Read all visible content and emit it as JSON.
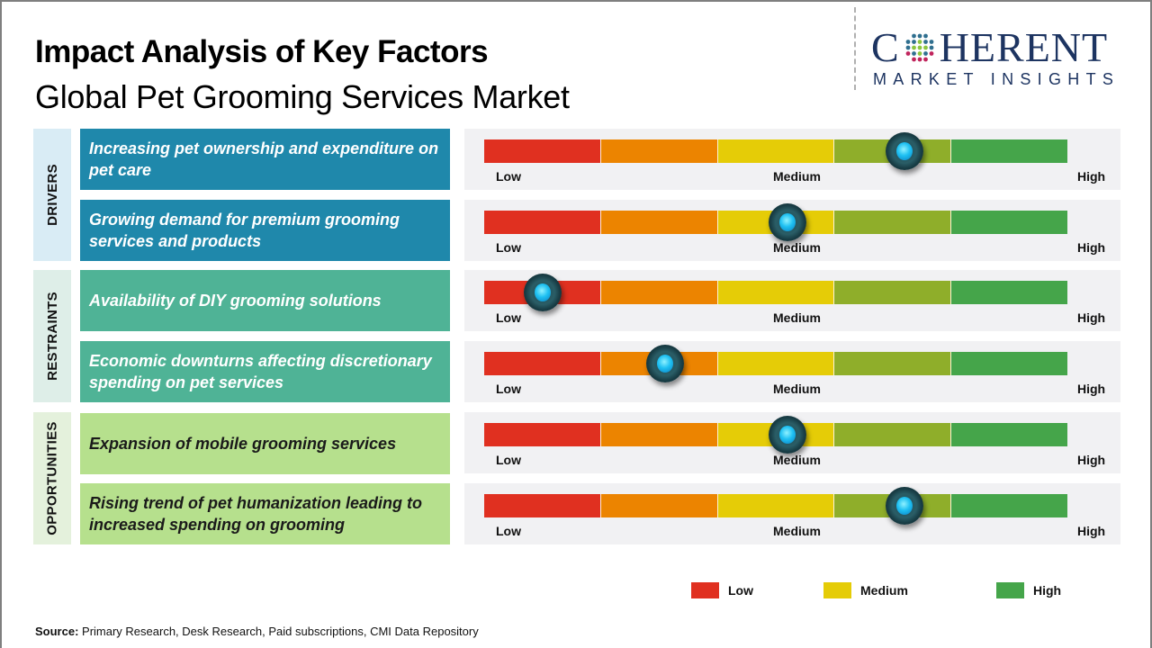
{
  "header": {
    "title": "Impact Analysis of Key Factors",
    "subtitle": "Global Pet Grooming Services Market"
  },
  "logo": {
    "main_left": "C",
    "main_right": "HERENT",
    "sub": "MARKET INSIGHTS",
    "icon": "globe-dots-icon",
    "color": "#1d3461"
  },
  "chart_data": {
    "type": "table",
    "title": "Impact Analysis of Key Factors",
    "subtitle": "Global Pet Grooming Services Market",
    "scale_labels": [
      "Low",
      "Medium",
      "High"
    ],
    "segment_colors": [
      "#e03020",
      "#ec8400",
      "#e5cc07",
      "#8fae2a",
      "#45a54a"
    ],
    "value_range": [
      0,
      1
    ],
    "categories": [
      {
        "name": "DRIVERS",
        "factors": [
          {
            "label": "Increasing pet ownership and expenditure on pet care",
            "impact": 0.72,
            "level": "Medium-High"
          },
          {
            "label": "Growing demand for premium grooming services and products",
            "impact": 0.52,
            "level": "Medium"
          }
        ]
      },
      {
        "name": "RESTRAINTS",
        "factors": [
          {
            "label": "Availability of DIY grooming solutions",
            "impact": 0.1,
            "level": "Low"
          },
          {
            "label": "Economic downturns affecting discretionary spending on pet services",
            "impact": 0.31,
            "level": "Low-Medium"
          }
        ]
      },
      {
        "name": "OPPORTUNITIES",
        "factors": [
          {
            "label": "Expansion of mobile grooming services",
            "impact": 0.52,
            "level": "Medium"
          },
          {
            "label": "Rising trend of pet humanization leading to increased spending on grooming",
            "impact": 0.72,
            "level": "Medium-High"
          }
        ]
      }
    ],
    "legend": [
      {
        "label": "Low",
        "color": "#e03020"
      },
      {
        "label": "Medium",
        "color": "#e5cc07"
      },
      {
        "label": "High",
        "color": "#45a54a"
      }
    ],
    "legend_position": "bottom-right"
  },
  "footer": {
    "source_label": "Source:",
    "source_text": " Primary Research, Desk Research, Paid subscriptions, CMI Data Repository"
  }
}
